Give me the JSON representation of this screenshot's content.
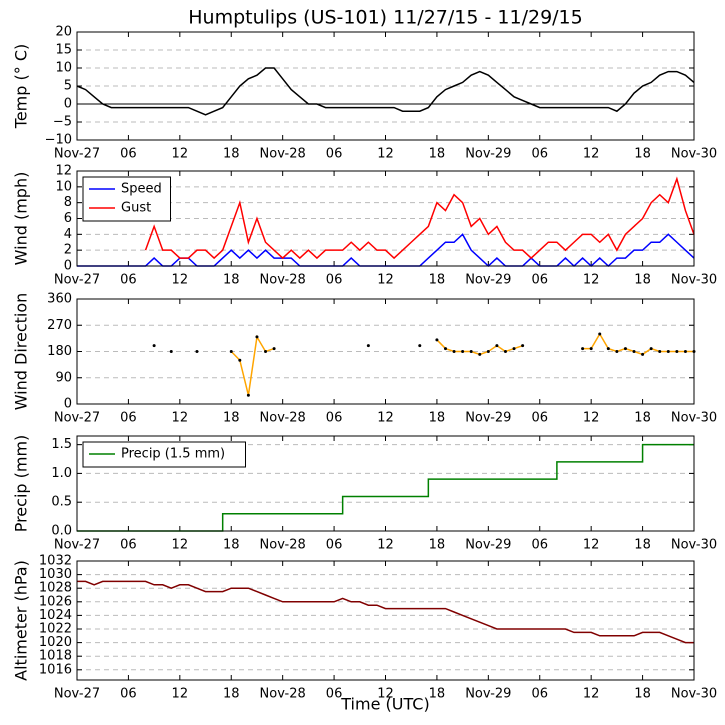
{
  "chart_data": [
    {
      "type": "line",
      "title": "Humptulips (US-101) 11/27/15 - 11/29/15",
      "ylabel": "Temp (° C)",
      "x": [
        0,
        1,
        2,
        3,
        4,
        5,
        6,
        7,
        8,
        9,
        10,
        11,
        12,
        13,
        14,
        15,
        16,
        17,
        18,
        19,
        20,
        21,
        22,
        23,
        24,
        25,
        26,
        27,
        28,
        29,
        30,
        31,
        32,
        33,
        34,
        35,
        36,
        37,
        38,
        39,
        40,
        41,
        42,
        43,
        44,
        45,
        46,
        47,
        48,
        49,
        50,
        51,
        52,
        53,
        54,
        55,
        56,
        57,
        58,
        59,
        60,
        61,
        62,
        63,
        64,
        65,
        66,
        67,
        68,
        69,
        70,
        71,
        72
      ],
      "values": [
        5,
        4,
        2,
        0,
        -1,
        -1,
        -1,
        -1,
        -1,
        -1,
        -1,
        -1,
        -1,
        -1,
        -2,
        -3,
        -2,
        -1,
        2,
        5,
        7,
        8,
        10,
        10,
        7,
        4,
        2,
        0,
        0,
        -1,
        -1,
        -1,
        -1,
        -1,
        -1,
        -1,
        -1,
        -1,
        -2,
        -2,
        -2,
        -1,
        2,
        4,
        5,
        6,
        8,
        9,
        8,
        6,
        4,
        2,
        1,
        0,
        -1,
        -1,
        -1,
        -1,
        -1,
        -1,
        -1,
        -1,
        -1,
        -2,
        0,
        3,
        5,
        6,
        8,
        9,
        9,
        8,
        6
      ],
      "color": "#000000",
      "hline": 0,
      "xlim": [
        0,
        72
      ],
      "xticks": [
        {
          "value": 0,
          "label": "Nov-27"
        },
        {
          "value": 6,
          "label": "06"
        },
        12,
        18,
        {
          "value": 24,
          "label": "Nov-28"
        },
        {
          "value": 30,
          "label": "06"
        },
        {
          "value": 36,
          "label": "12"
        },
        {
          "value": 42,
          "label": "18"
        },
        {
          "value": 48,
          "label": "Nov-29"
        },
        {
          "value": 54,
          "label": "06"
        },
        {
          "value": 60,
          "label": "12"
        },
        {
          "value": 66,
          "label": "18"
        },
        {
          "value": 72,
          "label": "Nov-30"
        }
      ],
      "ylim": [
        -10,
        20
      ],
      "yticks": [
        {
          "value": -10,
          "label": "−10"
        },
        {
          "value": -5,
          "label": "−5"
        },
        0,
        5,
        10,
        15,
        20
      ],
      "grid": true
    },
    {
      "type": "line",
      "ylabel": "Wind (mph)",
      "legend": "upper left",
      "x": [
        0,
        1,
        2,
        3,
        4,
        5,
        6,
        7,
        8,
        9,
        10,
        11,
        12,
        13,
        14,
        15,
        16,
        17,
        18,
        19,
        20,
        21,
        22,
        23,
        24,
        25,
        26,
        27,
        28,
        29,
        30,
        31,
        32,
        33,
        34,
        35,
        36,
        37,
        38,
        39,
        40,
        41,
        42,
        43,
        44,
        45,
        46,
        47,
        48,
        49,
        50,
        51,
        52,
        53,
        54,
        55,
        56,
        57,
        58,
        59,
        60,
        61,
        62,
        63,
        64,
        65,
        66,
        67,
        68,
        69,
        70,
        71,
        72
      ],
      "series": [
        {
          "name": "Speed",
          "color": "#0000ff",
          "values": [
            0,
            0,
            0,
            0,
            0,
            0,
            0,
            0,
            0,
            1,
            0,
            0,
            1,
            1,
            0,
            0,
            0,
            1,
            2,
            1,
            2,
            1,
            2,
            1,
            1,
            1,
            0,
            0,
            0,
            0,
            0,
            0,
            1,
            0,
            0,
            0,
            0,
            0,
            0,
            0,
            0,
            1,
            2,
            3,
            3,
            4,
            2,
            1,
            0,
            1,
            0,
            0,
            0,
            1,
            0,
            0,
            0,
            1,
            0,
            1,
            0,
            1,
            0,
            1,
            1,
            2,
            2,
            3,
            3,
            4,
            3,
            2,
            1
          ]
        },
        {
          "name": "Gust",
          "color": "#ff0000",
          "values": [
            null,
            null,
            null,
            null,
            null,
            null,
            null,
            null,
            2,
            5,
            2,
            2,
            1,
            1,
            2,
            2,
            1,
            2,
            5,
            8,
            3,
            6,
            3,
            2,
            1,
            2,
            1,
            2,
            1,
            2,
            2,
            2,
            3,
            2,
            3,
            2,
            2,
            1,
            2,
            3,
            4,
            5,
            8,
            7,
            9,
            8,
            5,
            6,
            4,
            5,
            3,
            2,
            2,
            1,
            2,
            3,
            3,
            2,
            3,
            4,
            4,
            3,
            4,
            2,
            4,
            5,
            6,
            8,
            9,
            8,
            11,
            7,
            4
          ]
        }
      ],
      "xlim": [
        0,
        72
      ],
      "xticks": [
        {
          "value": 0,
          "label": "Nov-27"
        },
        {
          "value": 6,
          "label": "06"
        },
        12,
        18,
        {
          "value": 24,
          "label": "Nov-28"
        },
        {
          "value": 30,
          "label": "06"
        },
        {
          "value": 36,
          "label": "12"
        },
        {
          "value": 42,
          "label": "18"
        },
        {
          "value": 48,
          "label": "Nov-29"
        },
        {
          "value": 54,
          "label": "06"
        },
        {
          "value": 60,
          "label": "12"
        },
        {
          "value": 66,
          "label": "18"
        },
        {
          "value": 72,
          "label": "Nov-30"
        }
      ],
      "ylim": [
        0,
        12
      ],
      "yticks": [
        0,
        2,
        4,
        6,
        8,
        10,
        12
      ],
      "grid": true
    },
    {
      "type": "line",
      "ylabel": "Wind Direction",
      "x": [
        0,
        1,
        2,
        3,
        4,
        5,
        6,
        7,
        8,
        9,
        10,
        11,
        12,
        13,
        14,
        15,
        16,
        17,
        18,
        19,
        20,
        21,
        22,
        23,
        24,
        25,
        26,
        27,
        28,
        29,
        30,
        31,
        32,
        33,
        34,
        35,
        36,
        37,
        38,
        39,
        40,
        41,
        42,
        43,
        44,
        45,
        46,
        47,
        48,
        49,
        50,
        51,
        52,
        53,
        54,
        55,
        56,
        57,
        58,
        59,
        60,
        61,
        62,
        63,
        64,
        65,
        66,
        67,
        68,
        69,
        70,
        71,
        72
      ],
      "values": [
        null,
        null,
        null,
        null,
        null,
        null,
        null,
        null,
        null,
        200,
        null,
        180,
        null,
        null,
        180,
        null,
        null,
        null,
        180,
        150,
        30,
        230,
        180,
        190,
        null,
        null,
        null,
        null,
        null,
        null,
        null,
        null,
        null,
        null,
        200,
        null,
        null,
        null,
        null,
        null,
        200,
        null,
        220,
        190,
        180,
        180,
        180,
        170,
        180,
        200,
        180,
        190,
        200,
        null,
        null,
        null,
        null,
        null,
        null,
        190,
        190,
        240,
        190,
        180,
        190,
        180,
        170,
        190,
        180,
        180,
        180,
        180,
        180
      ],
      "color": "#ffa500",
      "marker_color": "#000000",
      "xlim": [
        0,
        72
      ],
      "xticks": [
        {
          "value": 0,
          "label": "Nov-27"
        },
        {
          "value": 6,
          "label": "06"
        },
        12,
        18,
        {
          "value": 24,
          "label": "Nov-28"
        },
        {
          "value": 30,
          "label": "06"
        },
        {
          "value": 36,
          "label": "12"
        },
        {
          "value": 42,
          "label": "18"
        },
        {
          "value": 48,
          "label": "Nov-29"
        },
        {
          "value": 54,
          "label": "06"
        },
        {
          "value": 60,
          "label": "12"
        },
        {
          "value": 66,
          "label": "18"
        },
        {
          "value": 72,
          "label": "Nov-30"
        }
      ],
      "ylim": [
        0,
        360
      ],
      "yticks": [
        0,
        90,
        180,
        270,
        360
      ],
      "grid": true
    },
    {
      "type": "line",
      "ylabel": "Precip (mm)",
      "legend": "upper left",
      "step": true,
      "x": [
        0,
        1,
        2,
        3,
        4,
        5,
        6,
        7,
        8,
        9,
        10,
        11,
        12,
        13,
        14,
        15,
        16,
        17,
        18,
        19,
        20,
        21,
        22,
        23,
        24,
        25,
        26,
        27,
        28,
        29,
        30,
        31,
        32,
        33,
        34,
        35,
        36,
        37,
        38,
        39,
        40,
        41,
        42,
        43,
        44,
        45,
        46,
        47,
        48,
        49,
        50,
        51,
        52,
        53,
        54,
        55,
        56,
        57,
        58,
        59,
        60,
        61,
        62,
        63,
        64,
        65,
        66,
        67,
        68,
        69,
        70,
        71,
        72
      ],
      "series": [
        {
          "name": "Precip (1.5 mm)",
          "color": "#008000",
          "values": [
            0,
            0,
            0,
            0,
            0,
            0,
            0,
            0,
            0,
            0,
            0,
            0,
            0,
            0,
            0,
            0,
            0,
            0.3,
            0.3,
            0.3,
            0.3,
            0.3,
            0.3,
            0.3,
            0.3,
            0.3,
            0.3,
            0.3,
            0.3,
            0.3,
            0.3,
            0.6,
            0.6,
            0.6,
            0.6,
            0.6,
            0.6,
            0.6,
            0.6,
            0.6,
            0.6,
            0.9,
            0.9,
            0.9,
            0.9,
            0.9,
            0.9,
            0.9,
            0.9,
            0.9,
            0.9,
            0.9,
            0.9,
            0.9,
            0.9,
            0.9,
            1.2,
            1.2,
            1.2,
            1.2,
            1.2,
            1.2,
            1.2,
            1.2,
            1.2,
            1.2,
            1.5,
            1.5,
            1.5,
            1.5,
            1.5,
            1.5,
            1.5
          ]
        }
      ],
      "xlim": [
        0,
        72
      ],
      "xticks": [
        {
          "value": 0,
          "label": "Nov-27"
        },
        {
          "value": 6,
          "label": "06"
        },
        12,
        18,
        {
          "value": 24,
          "label": "Nov-28"
        },
        {
          "value": 30,
          "label": "06"
        },
        {
          "value": 36,
          "label": "12"
        },
        {
          "value": 42,
          "label": "18"
        },
        {
          "value": 48,
          "label": "Nov-29"
        },
        {
          "value": 54,
          "label": "06"
        },
        {
          "value": 60,
          "label": "12"
        },
        {
          "value": 66,
          "label": "18"
        },
        {
          "value": 72,
          "label": "Nov-30"
        }
      ],
      "ylim": [
        0,
        1.65
      ],
      "yticks": [
        {
          "value": 0,
          "label": "0.0"
        },
        0.5,
        {
          "value": 1,
          "label": "1.0"
        },
        1.5
      ],
      "grid": true
    },
    {
      "type": "line",
      "ylabel": "Altimeter (hPa)",
      "xlabel": "Time (UTC)",
      "x": [
        0,
        1,
        2,
        3,
        4,
        5,
        6,
        7,
        8,
        9,
        10,
        11,
        12,
        13,
        14,
        15,
        16,
        17,
        18,
        19,
        20,
        21,
        22,
        23,
        24,
        25,
        26,
        27,
        28,
        29,
        30,
        31,
        32,
        33,
        34,
        35,
        36,
        37,
        38,
        39,
        40,
        41,
        42,
        43,
        44,
        45,
        46,
        47,
        48,
        49,
        50,
        51,
        52,
        53,
        54,
        55,
        56,
        57,
        58,
        59,
        60,
        61,
        62,
        63,
        64,
        65,
        66,
        67,
        68,
        69,
        70,
        71,
        72
      ],
      "values": [
        1029,
        1029,
        1028.5,
        1029,
        1029,
        1029,
        1029,
        1029,
        1029,
        1028.5,
        1028.5,
        1028,
        1028.5,
        1028.5,
        1028,
        1027.5,
        1027.5,
        1027.5,
        1028,
        1028,
        1028,
        1027.5,
        1027,
        1026.5,
        1026,
        1026,
        1026,
        1026,
        1026,
        1026,
        1026,
        1026.5,
        1026,
        1026,
        1025.5,
        1025.5,
        1025,
        1025,
        1025,
        1025,
        1025,
        1025,
        1025,
        1025,
        1024.5,
        1024,
        1023.5,
        1023,
        1022.5,
        1022,
        1022,
        1022,
        1022,
        1022,
        1022,
        1022,
        1022,
        1022,
        1021.5,
        1021.5,
        1021.5,
        1021,
        1021,
        1021,
        1021,
        1021,
        1021.5,
        1021.5,
        1021.5,
        1021,
        1020.5,
        1020,
        1020
      ],
      "color": "#800000",
      "xlim": [
        0,
        72
      ],
      "xticks": [
        {
          "value": 0,
          "label": "Nov-27"
        },
        {
          "value": 6,
          "label": "06"
        },
        12,
        18,
        {
          "value": 24,
          "label": "Nov-28"
        },
        {
          "value": 30,
          "label": "06"
        },
        {
          "value": 36,
          "label": "12"
        },
        {
          "value": 42,
          "label": "18"
        },
        {
          "value": 48,
          "label": "Nov-29"
        },
        {
          "value": 54,
          "label": "06"
        },
        {
          "value": 60,
          "label": "12"
        },
        {
          "value": 66,
          "label": "18"
        },
        {
          "value": 72,
          "label": "Nov-30"
        }
      ],
      "ylim": [
        1014.5,
        1032
      ],
      "yticks": [
        1016,
        1018,
        1020,
        1022,
        1024,
        1026,
        1028,
        1030,
        1032
      ],
      "grid": true
    }
  ]
}
